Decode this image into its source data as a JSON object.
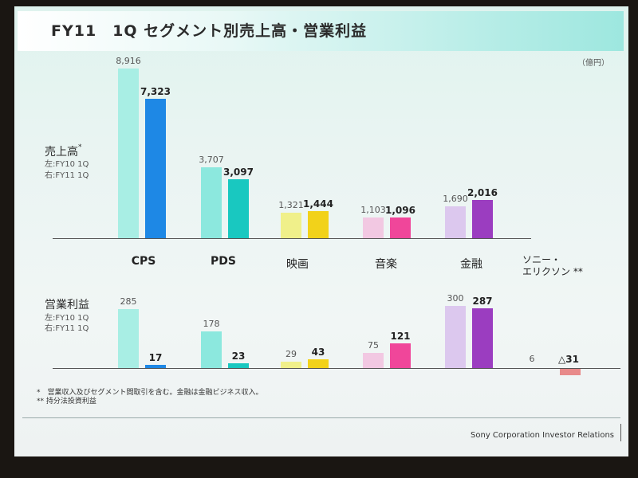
{
  "title": "FY11　1Q セグメント別売上高・営業利益",
  "unit": "（億円）",
  "colors": {
    "cps_prev": "#a8eee4",
    "cps_cur": "#1e88e5",
    "pds_prev": "#8ce8de",
    "pds_cur": "#19c8c0",
    "film_prev": "#f0f08a",
    "film_cur": "#f2d21a",
    "music_prev": "#f2c8e2",
    "music_cur": "#f0469a",
    "fin_prev": "#dcc8ee",
    "fin_cur": "#9b3dc0",
    "sony_cur": "#e88a8a"
  },
  "chart_data": [
    {
      "type": "bar",
      "title": "売上高",
      "legend": [
        "左:FY10 1Q",
        "右:FY11 1Q"
      ],
      "categories": [
        "CPS",
        "PDS",
        "映画",
        "音楽",
        "金融"
      ],
      "series": [
        {
          "name": "FY10 1Q",
          "values": [
            8916,
            3707,
            1321,
            1103,
            1690
          ],
          "labels": [
            "8,916",
            "3,707",
            "1,321",
            "1,103",
            "1,690"
          ]
        },
        {
          "name": "FY11 1Q",
          "values": [
            7323,
            3097,
            1444,
            1096,
            2016
          ],
          "labels": [
            "7,323",
            "3,097",
            "1,444",
            "1,096",
            "2,016"
          ]
        }
      ]
    },
    {
      "type": "bar",
      "title": "営業利益",
      "legend": [
        "左:FY10 1Q",
        "右:FY11 1Q"
      ],
      "categories": [
        "CPS",
        "PDS",
        "映画",
        "音楽",
        "金融",
        "ソニー・エリクソン"
      ],
      "series": [
        {
          "name": "FY10 1Q",
          "values": [
            285,
            178,
            29,
            75,
            300,
            6
          ],
          "labels": [
            "285",
            "178",
            "29",
            "75",
            "300",
            "6"
          ]
        },
        {
          "name": "FY11 1Q",
          "values": [
            17,
            23,
            43,
            121,
            287,
            -31
          ],
          "labels": [
            "17",
            "23",
            "43",
            "121",
            "287",
            "△31"
          ]
        }
      ]
    }
  ],
  "sales_label": "売上高",
  "sales_mark": "*",
  "op_label": "営業利益",
  "legend_prev": "左:FY10 1Q",
  "legend_cur": "右:FY11 1Q",
  "category_labels": [
    "CPS",
    "PDS",
    "映画",
    "音楽",
    "金融"
  ],
  "sony_label": "ソニー・\nエリクソン **",
  "footnote1": "*　営業収入及びセグメント間取引を含む。金融は金融ビジネス収入。",
  "footnote2": "** 持分法投資利益",
  "footer": "Sony Corporation  Investor Relations"
}
